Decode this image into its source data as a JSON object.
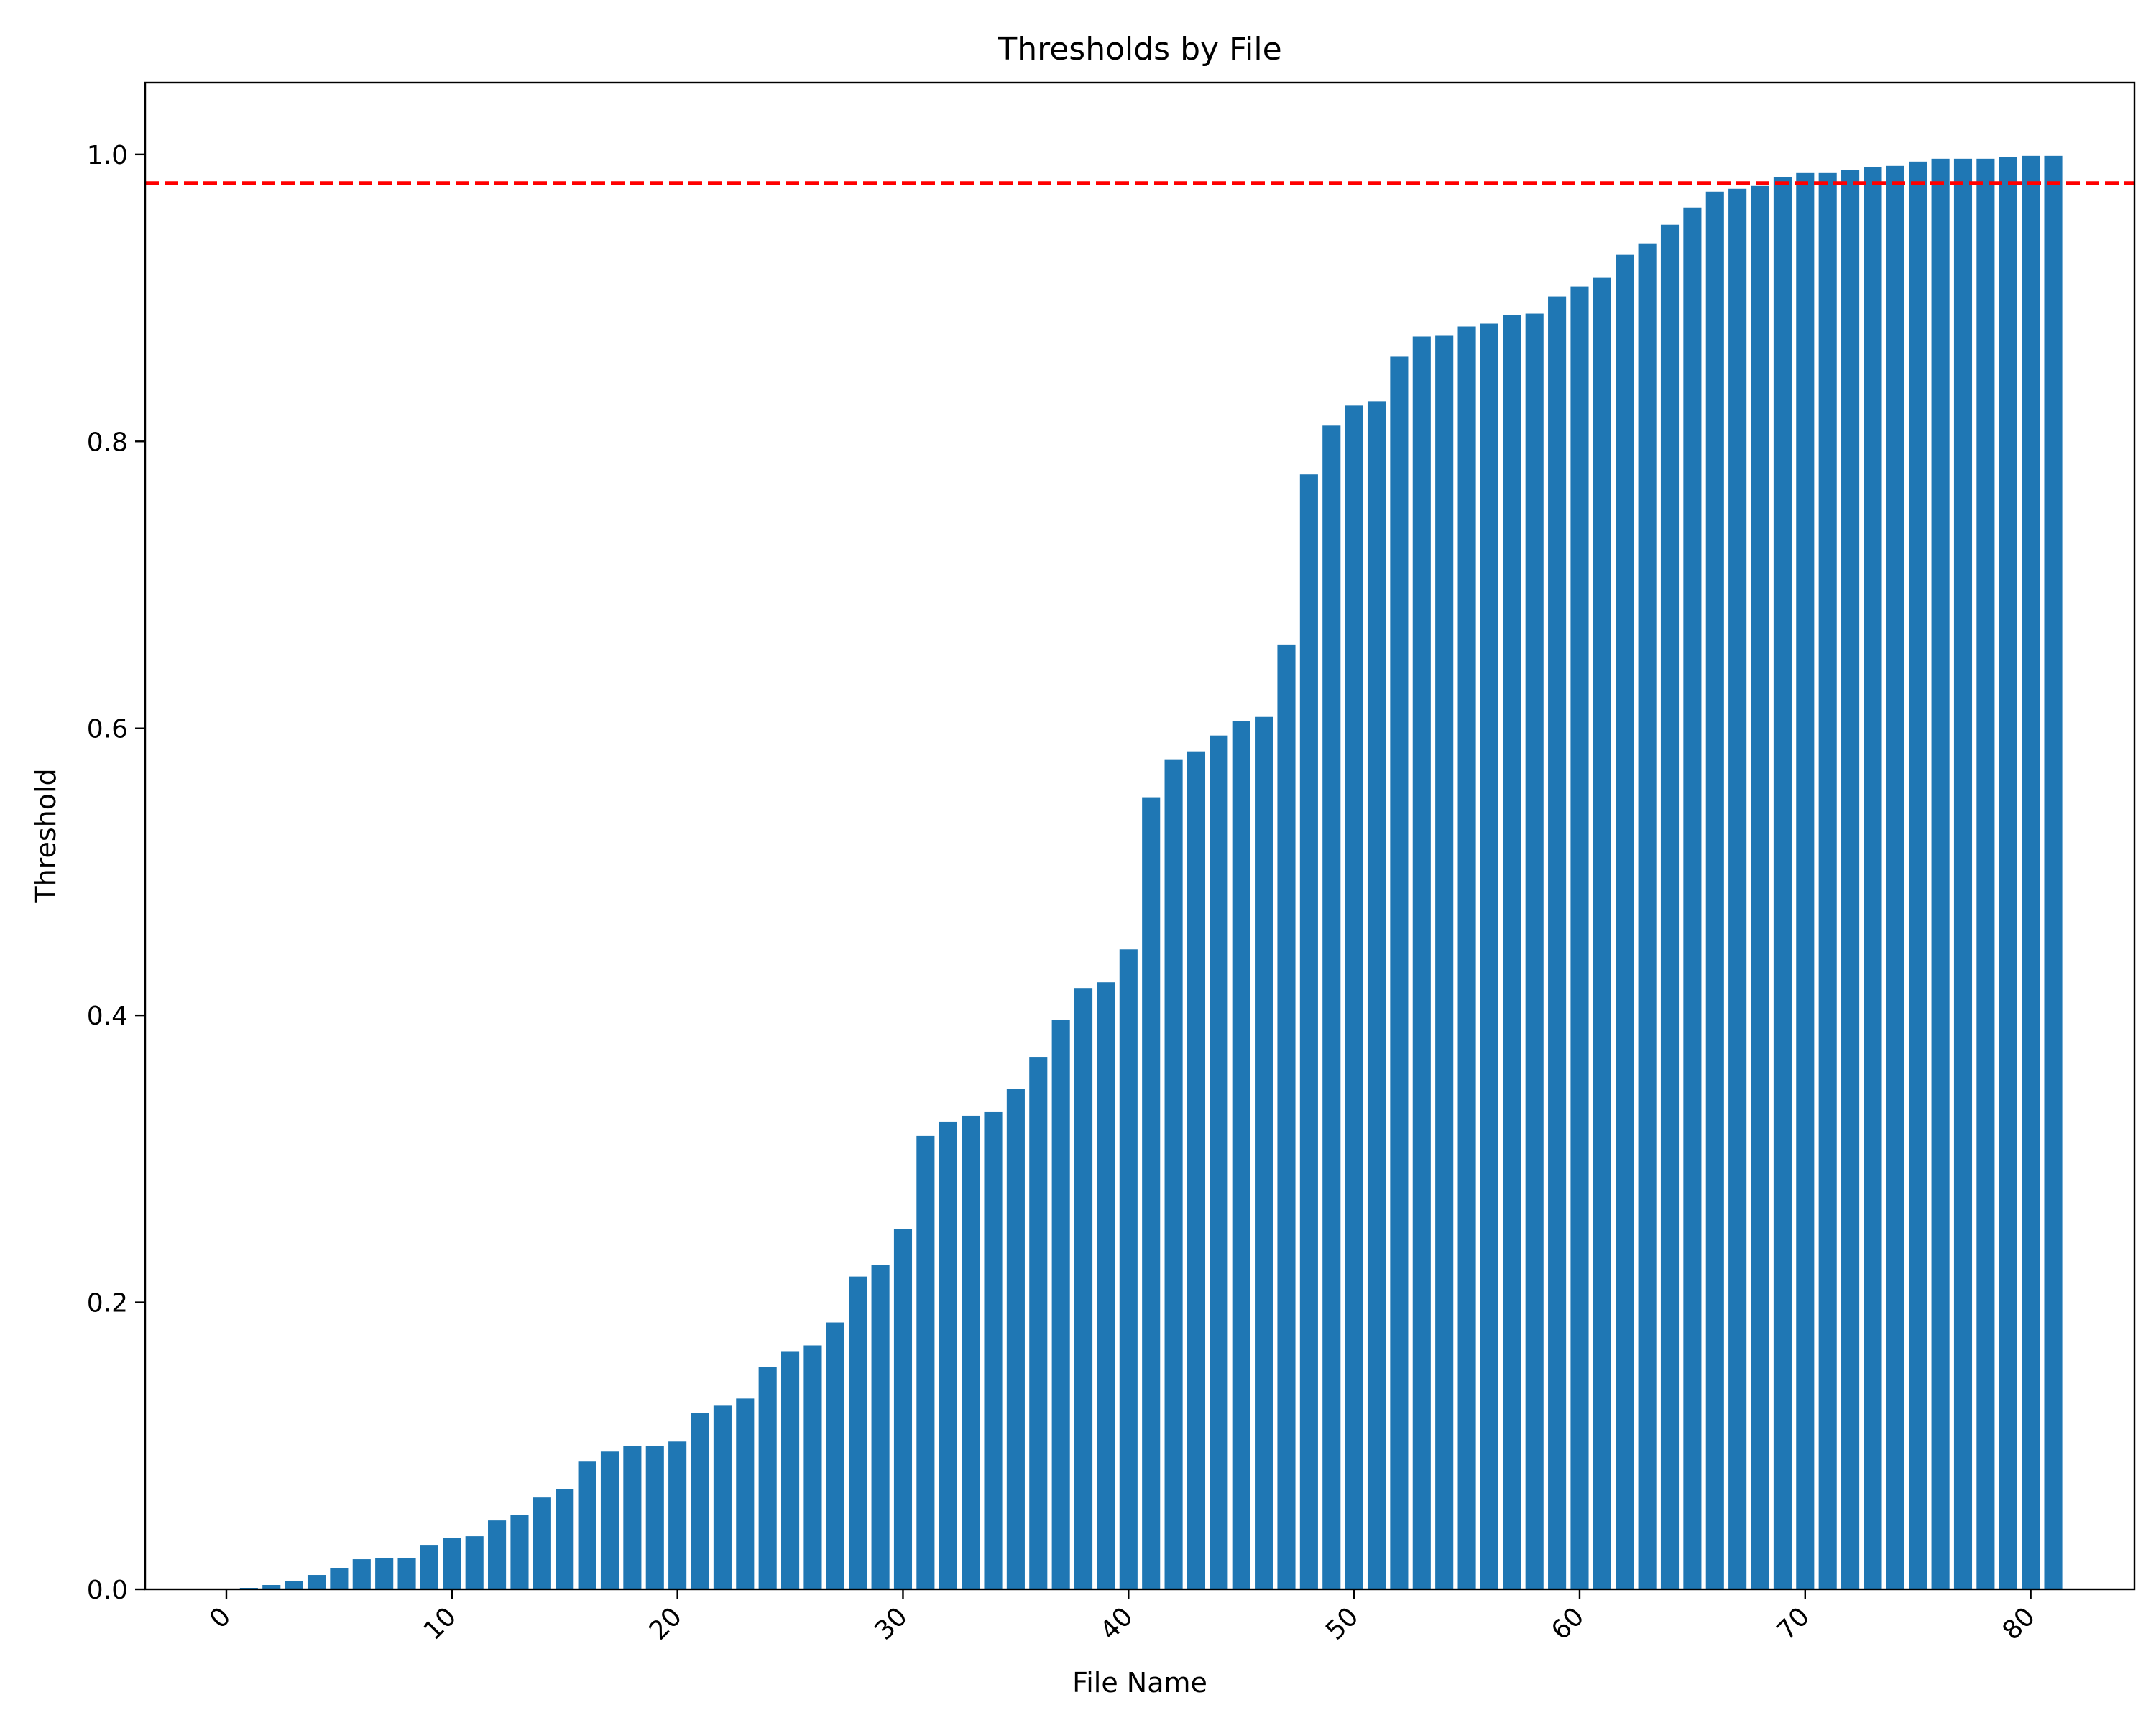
{
  "chart_data": {
    "type": "bar",
    "title": "Thresholds by File",
    "xlabel": "File Name",
    "ylabel": "Threshold",
    "x": [
      0,
      1,
      2,
      3,
      4,
      5,
      6,
      7,
      8,
      9,
      10,
      11,
      12,
      13,
      14,
      15,
      16,
      17,
      18,
      19,
      20,
      21,
      22,
      23,
      24,
      25,
      26,
      27,
      28,
      29,
      30,
      31,
      32,
      33,
      34,
      35,
      36,
      37,
      38,
      39,
      40,
      41,
      42,
      43,
      44,
      45,
      46,
      47,
      48,
      49,
      50,
      51,
      52,
      53,
      54,
      55,
      56,
      57,
      58,
      59,
      60,
      61,
      62,
      63,
      64,
      65,
      66,
      67,
      68,
      69,
      70,
      71,
      72,
      73,
      74,
      75,
      76,
      77,
      78,
      79,
      80,
      81
    ],
    "values": [
      0.0,
      0.001,
      0.003,
      0.006,
      0.01,
      0.015,
      0.021,
      0.022,
      0.022,
      0.031,
      0.036,
      0.037,
      0.048,
      0.052,
      0.064,
      0.07,
      0.089,
      0.096,
      0.1,
      0.1,
      0.103,
      0.123,
      0.128,
      0.133,
      0.155,
      0.166,
      0.17,
      0.186,
      0.218,
      0.226,
      0.251,
      0.316,
      0.326,
      0.33,
      0.333,
      0.349,
      0.371,
      0.397,
      0.419,
      0.423,
      0.446,
      0.552,
      0.578,
      0.584,
      0.595,
      0.605,
      0.608,
      0.658,
      0.777,
      0.811,
      0.825,
      0.828,
      0.859,
      0.873,
      0.874,
      0.88,
      0.882,
      0.888,
      0.889,
      0.901,
      0.908,
      0.914,
      0.93,
      0.938,
      0.951,
      0.963,
      0.974,
      0.976,
      0.978,
      0.984,
      0.987,
      0.987,
      0.989,
      0.991,
      0.992,
      0.995,
      0.997,
      0.997,
      0.997,
      0.998,
      0.999,
      0.999
    ],
    "xlim": [
      -3.6,
      84.6
    ],
    "ylim": [
      0.0,
      1.05
    ],
    "xticks": [
      0,
      10,
      20,
      30,
      40,
      50,
      60,
      70,
      80
    ],
    "xtick_labels": [
      "0",
      "10",
      "20",
      "30",
      "40",
      "50",
      "60",
      "70",
      "80"
    ],
    "yticks": [
      0.0,
      0.2,
      0.4,
      0.6,
      0.8,
      1.0
    ],
    "ytick_labels": [
      "0.0",
      "0.2",
      "0.4",
      "0.6",
      "0.8",
      "1.0"
    ],
    "reference_line": {
      "value": 0.98,
      "style": "dashed",
      "color": "#ff0000"
    },
    "bar_color": "#1f77b4",
    "grid": false,
    "legend": "none"
  }
}
